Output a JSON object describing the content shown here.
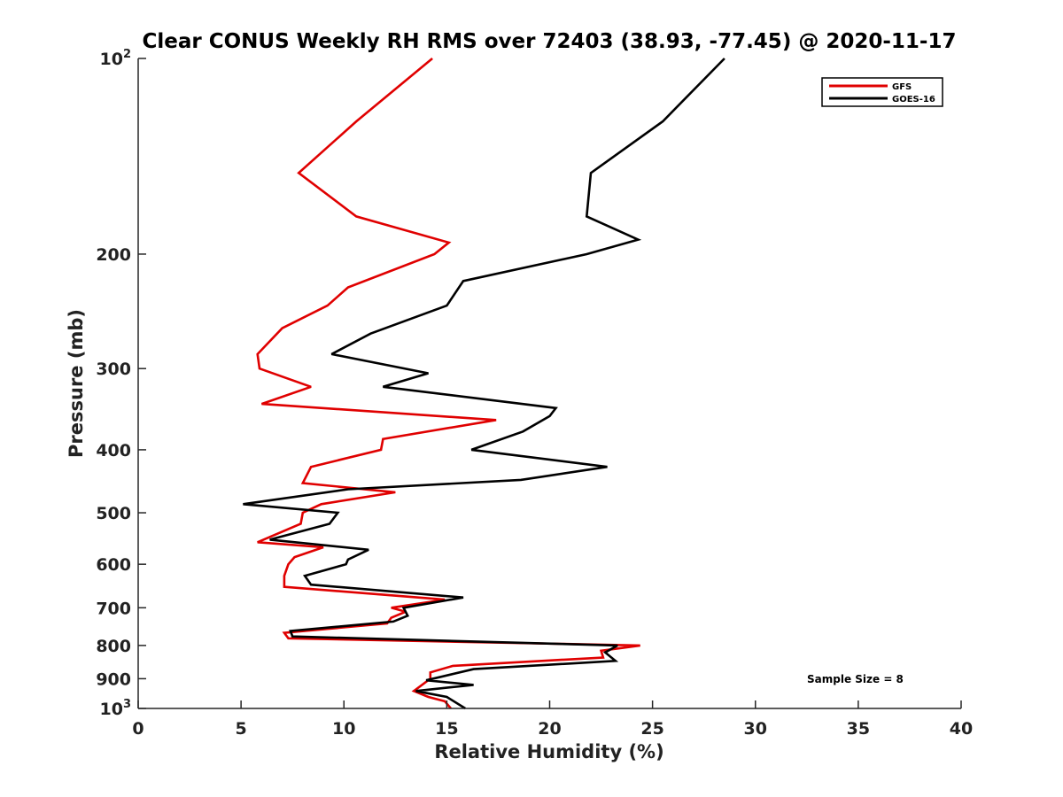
{
  "chart_data": {
    "type": "line",
    "title": "Clear CONUS Weekly RH RMS over 72403 (38.93, -77.45) @ 2020-11-17",
    "xlabel": "Relative Humidity (%)",
    "ylabel": "Pressure (mb)",
    "xlim": [
      0,
      40
    ],
    "ylim": [
      100,
      1000
    ],
    "y_scale": "log",
    "y_reversed": true,
    "x_ticks": [
      0,
      5,
      10,
      15,
      20,
      25,
      30,
      35,
      40
    ],
    "y_ticks": [
      {
        "value": 100,
        "label": "10",
        "sup": "2"
      },
      {
        "value": 200,
        "label": "200",
        "sup": ""
      },
      {
        "value": 300,
        "label": "300",
        "sup": ""
      },
      {
        "value": 400,
        "label": "400",
        "sup": ""
      },
      {
        "value": 500,
        "label": "500",
        "sup": ""
      },
      {
        "value": 600,
        "label": "600",
        "sup": ""
      },
      {
        "value": 700,
        "label": "700",
        "sup": ""
      },
      {
        "value": 800,
        "label": "800",
        "sup": ""
      },
      {
        "value": 900,
        "label": "900",
        "sup": ""
      },
      {
        "value": 1000,
        "label": "10",
        "sup": "3"
      }
    ],
    "grid": false,
    "legend_position": "top-right",
    "annotation": "Sample Size = 8",
    "series": [
      {
        "name": "GFS",
        "color": "#e00000",
        "points": [
          [
            14.3,
            100
          ],
          [
            10.6,
            125
          ],
          [
            7.8,
            150
          ],
          [
            10.6,
            175
          ],
          [
            15.1,
            192
          ],
          [
            14.4,
            200
          ],
          [
            10.2,
            225
          ],
          [
            9.2,
            240
          ],
          [
            7.0,
            260
          ],
          [
            5.8,
            285
          ],
          [
            5.9,
            300
          ],
          [
            8.4,
            320
          ],
          [
            6.0,
            340
          ],
          [
            17.4,
            360
          ],
          [
            11.9,
            385
          ],
          [
            11.8,
            400
          ],
          [
            8.4,
            425
          ],
          [
            8.0,
            450
          ],
          [
            12.5,
            465
          ],
          [
            8.9,
            485
          ],
          [
            8.0,
            500
          ],
          [
            7.9,
            520
          ],
          [
            5.8,
            555
          ],
          [
            9.0,
            565
          ],
          [
            7.6,
            585
          ],
          [
            7.3,
            600
          ],
          [
            7.1,
            625
          ],
          [
            7.1,
            650
          ],
          [
            14.9,
            680
          ],
          [
            12.3,
            700
          ],
          [
            13.0,
            710
          ],
          [
            12.3,
            725
          ],
          [
            12.1,
            740
          ],
          [
            7.1,
            765
          ],
          [
            7.3,
            780
          ],
          [
            24.4,
            800
          ],
          [
            22.5,
            815
          ],
          [
            22.6,
            835
          ],
          [
            15.3,
            860
          ],
          [
            14.2,
            880
          ],
          [
            14.2,
            900
          ],
          [
            13.4,
            940
          ],
          [
            14.1,
            960
          ],
          [
            14.9,
            975
          ],
          [
            15.2,
            1000
          ]
        ]
      },
      {
        "name": "GOES-16",
        "color": "#000000",
        "points": [
          [
            28.5,
            100
          ],
          [
            25.5,
            125
          ],
          [
            22.0,
            150
          ],
          [
            21.8,
            175
          ],
          [
            24.3,
            190
          ],
          [
            21.8,
            200
          ],
          [
            15.8,
            220
          ],
          [
            15.0,
            240
          ],
          [
            11.3,
            265
          ],
          [
            9.4,
            285
          ],
          [
            14.1,
            305
          ],
          [
            11.9,
            320
          ],
          [
            20.3,
            345
          ],
          [
            20.0,
            355
          ],
          [
            18.7,
            375
          ],
          [
            16.2,
            400
          ],
          [
            22.8,
            425
          ],
          [
            18.6,
            445
          ],
          [
            10.2,
            460
          ],
          [
            5.1,
            485
          ],
          [
            9.7,
            500
          ],
          [
            9.3,
            520
          ],
          [
            6.4,
            550
          ],
          [
            11.2,
            570
          ],
          [
            10.2,
            590
          ],
          [
            10.1,
            600
          ],
          [
            8.1,
            625
          ],
          [
            8.4,
            645
          ],
          [
            15.8,
            675
          ],
          [
            12.9,
            700
          ],
          [
            13.1,
            720
          ],
          [
            12.4,
            735
          ],
          [
            7.4,
            760
          ],
          [
            7.5,
            775
          ],
          [
            23.3,
            800
          ],
          [
            22.7,
            820
          ],
          [
            23.2,
            845
          ],
          [
            16.3,
            870
          ],
          [
            14.0,
            905
          ],
          [
            16.3,
            920
          ],
          [
            13.5,
            940
          ],
          [
            15.0,
            960
          ],
          [
            15.9,
            1000
          ]
        ]
      }
    ]
  }
}
